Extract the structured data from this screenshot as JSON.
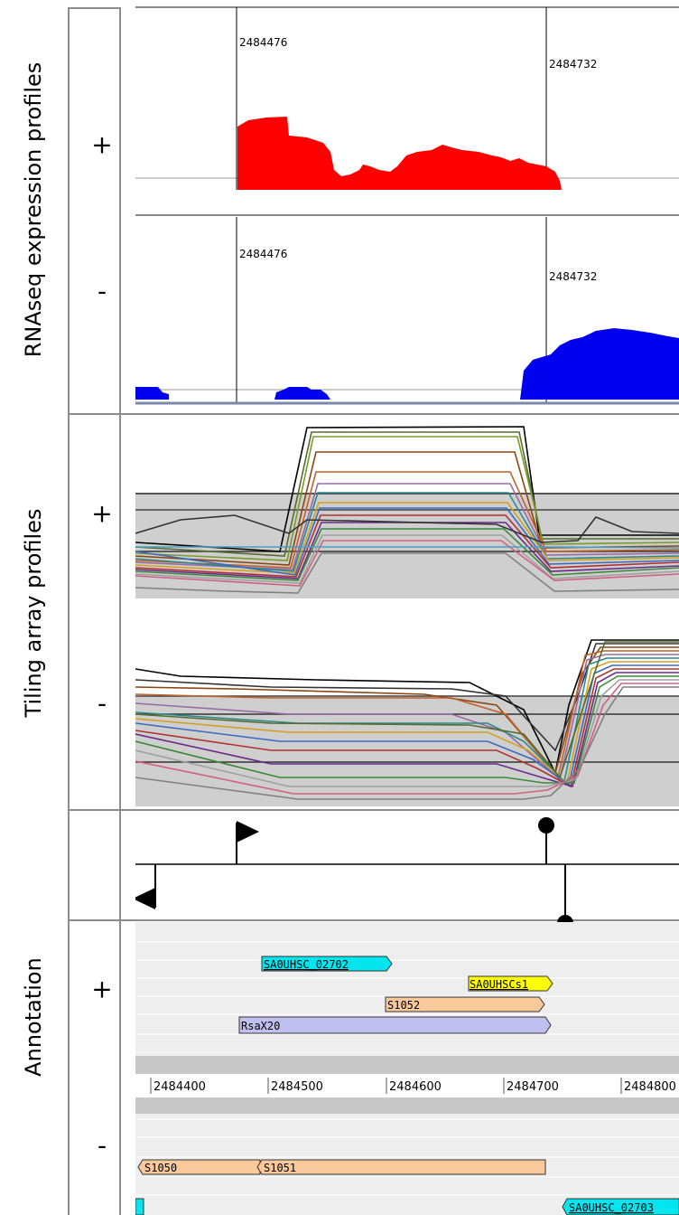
{
  "sections": {
    "rnaseq": {
      "title": "RNAseq expression profiles",
      "plus": "+",
      "minus": "-"
    },
    "tiling": {
      "title": "Tiling array profiles",
      "plus": "+",
      "minus": "-"
    },
    "annotation": {
      "title": "Annotation",
      "plus": "+",
      "minus": "-"
    }
  },
  "rnaseq_plus_markers": [
    "2484476",
    "2484732"
  ],
  "rnaseq_minus_markers": [
    "2484476",
    "2484732"
  ],
  "colors": {
    "plus_expression": "#ff0000",
    "minus_expression": "#0000ee",
    "gene_cyan": "#00e5ee",
    "gene_yellow": "#ffff00",
    "gene_peach": "#f9c89b",
    "gene_lavender": "#c0c0f0",
    "track_grey": "#cfcfcf"
  },
  "annotation": {
    "plus_genes": [
      {
        "name": "SA0UHSC_02702",
        "color": "cyan"
      },
      {
        "name": "SA0UHSCs1",
        "color": "yellow"
      },
      {
        "name": "S1052",
        "color": "peach"
      },
      {
        "name": "RsaX20",
        "color": "lavender"
      }
    ],
    "minus_genes": [
      {
        "name": "S1050",
        "color": "peach"
      },
      {
        "name": "S1051",
        "color": "peach"
      },
      {
        "name": "SA0UHSC_02703",
        "color": "cyan"
      }
    ],
    "axis_ticks": [
      "2484400",
      "2484500",
      "2484600",
      "2484700",
      "2484800"
    ]
  }
}
